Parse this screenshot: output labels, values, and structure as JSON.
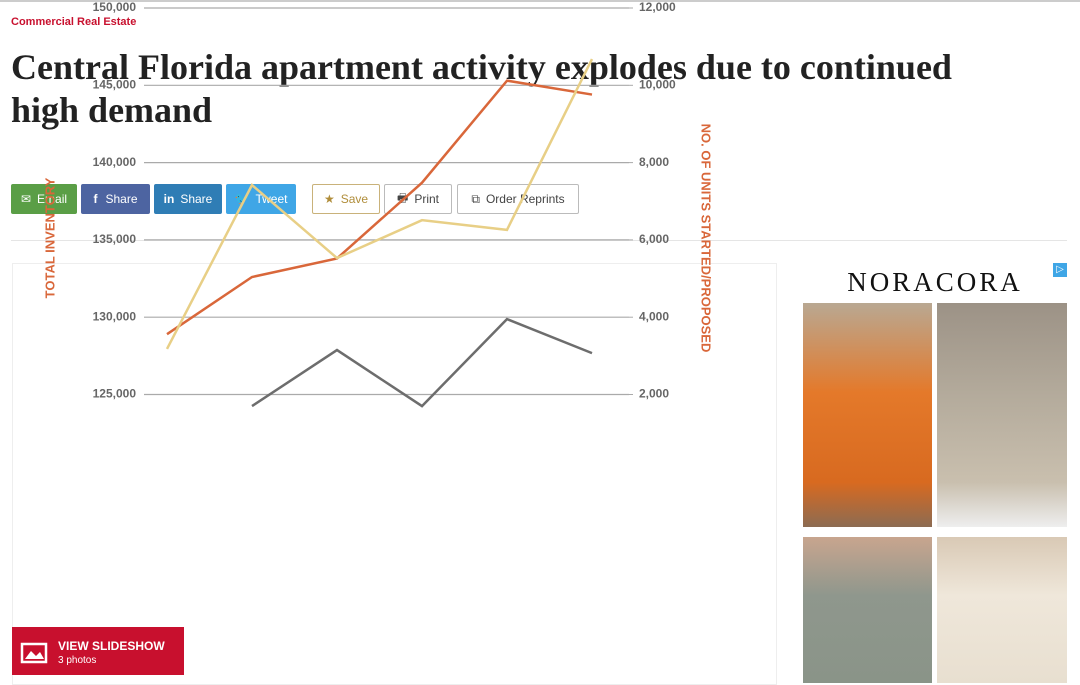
{
  "header": {
    "section": "Commercial Real Estate",
    "title": "Central Florida apartment activity explodes due to continued high demand"
  },
  "share_buttons": [
    "Email",
    "Share",
    "Share",
    "Tweet",
    "Save",
    "Print",
    "Order Reprints"
  ],
  "chart_data": {
    "type": "line",
    "y_label": "TOTAL INVENTORY",
    "y2_label": "NO. OF UNITS STARTED/PROPOSED",
    "categories": [
      null,
      null,
      null,
      null,
      null,
      null
    ],
    "series": [
      {
        "color": "#d9673a",
        "values": [
          128900,
          132600,
          133800,
          138700,
          145300,
          144400
        ]
      },
      {
        "color": "#e8cf86",
        "axis": "y2",
        "values": [
          3180,
          7420,
          5530,
          6510,
          6260,
          10680
        ]
      },
      {
        "color": "#6d6d6d",
        "axis": "y2",
        "values": [
          null,
          1700,
          3150,
          1700,
          3950,
          3070
        ]
      }
    ],
    "ylim": [
      120000,
      150000
    ],
    "yticks": [
      {
        "value": 150000,
        "label": "150,000"
      },
      {
        "value": 145000,
        "label": "145,000"
      },
      {
        "value": 140000,
        "label": "140,000"
      },
      {
        "value": 135000,
        "label": "135,000"
      },
      {
        "value": 130000,
        "label": "130,000"
      },
      {
        "value": 125000,
        "label": "125,000"
      }
    ],
    "y2lim": [
      0,
      12000
    ],
    "y2ticks": [
      {
        "value": 12000,
        "label": "12,000"
      },
      {
        "value": 10000,
        "label": "10,000"
      },
      {
        "value": 8000,
        "label": "8,000"
      },
      {
        "value": 6000,
        "label": "6,000"
      },
      {
        "value": 4000,
        "label": "4,000"
      },
      {
        "value": 2000,
        "label": "2,000"
      }
    ],
    "grid": true
  },
  "slideshow": {
    "label": "VIEW SLIDESHOW",
    "count": "3 photos"
  },
  "ad": {
    "brand": "NORACORA"
  }
}
